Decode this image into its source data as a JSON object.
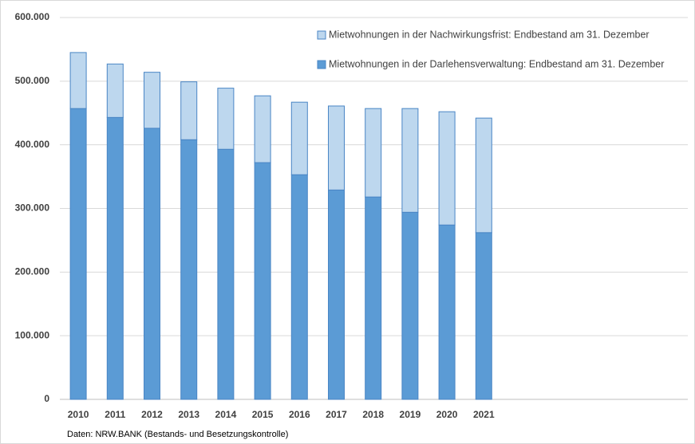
{
  "chart_data": {
    "type": "stacked_bar",
    "categories": [
      "2010",
      "2011",
      "2012",
      "2013",
      "2014",
      "2015",
      "2016",
      "2017",
      "2018",
      "2019",
      "2020",
      "2021"
    ],
    "series": [
      {
        "name": "Mietwohnungen in der Darlehensverwaltung: Endbestand am 31. Dezember",
        "color": "#5b9bd5",
        "values": [
          457000,
          443000,
          426000,
          408000,
          393000,
          372000,
          353000,
          329000,
          318000,
          294000,
          274000,
          262000
        ]
      },
      {
        "name": "Mietwohnungen in der Nachwirkungsfrist: Endbestand am 31. Dezember",
        "color": "#bdd7ee",
        "values": [
          88000,
          84000,
          88000,
          91000,
          96000,
          105000,
          114000,
          132000,
          139000,
          163000,
          178000,
          180000
        ]
      }
    ],
    "ylim": [
      0,
      600000
    ],
    "yticks": [
      0,
      {
        "value": 100000,
        "label": "100.000"
      },
      {
        "value": 200000,
        "label": "200.000"
      },
      {
        "value": 300000,
        "label": "300.000"
      },
      {
        "value": 400000,
        "label": "400.000"
      },
      {
        "value": 500000,
        "label": "500.000"
      },
      {
        "value": 600000,
        "label": "600.000"
      }
    ],
    "grid": true,
    "legend": "top-right",
    "source": "Daten: NRW.BANK (Bestands- und Besetzungskontrolle)"
  }
}
